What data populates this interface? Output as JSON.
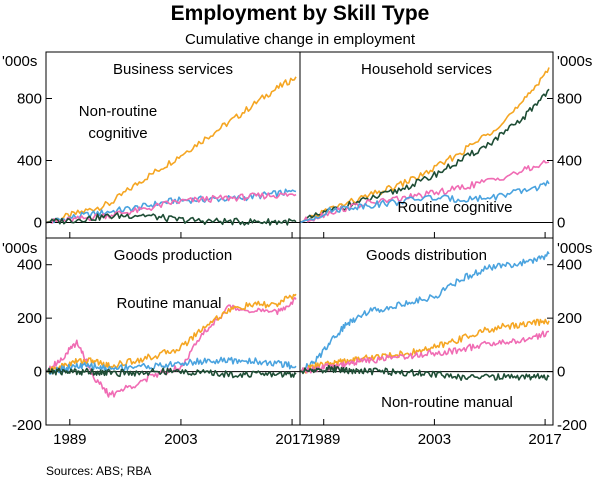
{
  "title": "Employment by Skill Type",
  "subtitle": "Cumulative change in employment",
  "source": "Sources: ABS; RBA",
  "colors": {
    "Non-routine cognitive": "#f5a623",
    "Routine cognitive": "#4aa3df",
    "Routine manual": "#f06cb4",
    "Non-routine manual": "#1e4d35"
  },
  "chart_data": [
    {
      "type": "line",
      "title": "Business services",
      "units_label": "'000s",
      "xlim": [
        1986,
        2018
      ],
      "ylim": [
        -100,
        1100
      ],
      "yticks": [
        0,
        400,
        800
      ],
      "xticks": [
        1989,
        2003,
        2017
      ],
      "x": [
        1986,
        1990,
        1994,
        1998,
        2002,
        2006,
        2010,
        2014,
        2017.5
      ],
      "series": [
        {
          "name": "Non-routine cognitive",
          "values": [
            0,
            60,
            120,
            270,
            400,
            540,
            680,
            830,
            940
          ]
        },
        {
          "name": "Routine cognitive",
          "values": [
            0,
            40,
            70,
            100,
            140,
            150,
            155,
            180,
            200
          ]
        },
        {
          "name": "Routine manual",
          "values": [
            0,
            20,
            50,
            80,
            130,
            150,
            160,
            175,
            180
          ]
        },
        {
          "name": "Non-routine manual",
          "values": [
            0,
            20,
            40,
            50,
            20,
            10,
            5,
            5,
            5
          ]
        }
      ],
      "annotations": [
        "Non-routine",
        "cognitive"
      ]
    },
    {
      "type": "line",
      "title": "Household services",
      "units_label": "'000s",
      "xlim": [
        1986,
        2018
      ],
      "ylim": [
        -100,
        1100
      ],
      "yticks": [
        0,
        400,
        800
      ],
      "xticks": [
        1989,
        2003,
        2017
      ],
      "x": [
        1986,
        1990,
        1994,
        1998,
        2002,
        2006,
        2010,
        2014,
        2017.5
      ],
      "series": [
        {
          "name": "Non-routine cognitive",
          "values": [
            0,
            90,
            160,
            230,
            320,
            440,
            580,
            760,
            1000
          ]
        },
        {
          "name": "Non-routine manual",
          "values": [
            0,
            80,
            140,
            200,
            280,
            390,
            510,
            660,
            860
          ]
        },
        {
          "name": "Routine manual",
          "values": [
            0,
            70,
            120,
            150,
            180,
            220,
            270,
            330,
            390
          ]
        },
        {
          "name": "Routine cognitive",
          "values": [
            0,
            80,
            110,
            130,
            160,
            150,
            160,
            200,
            250
          ]
        }
      ],
      "annotations": [
        "Routine cognitive"
      ]
    },
    {
      "type": "line",
      "title": "Goods production",
      "units_label": "'000s",
      "xlim": [
        1986,
        2018
      ],
      "ylim": [
        -200,
        500
      ],
      "yticks": [
        -200,
        0,
        200,
        400
      ],
      "xticks": [
        1989,
        2003,
        2017
      ],
      "x": [
        1986,
        1988,
        1990,
        1992,
        1994,
        1997,
        2000,
        2003,
        2006,
        2009,
        2012,
        2015,
        2017.5
      ],
      "series": [
        {
          "name": "Routine manual",
          "values": [
            0,
            50,
            110,
            -20,
            -90,
            -50,
            -10,
            20,
            150,
            240,
            230,
            220,
            270
          ]
        },
        {
          "name": "Non-routine cognitive",
          "values": [
            0,
            20,
            40,
            40,
            20,
            40,
            60,
            90,
            170,
            230,
            250,
            250,
            290
          ]
        },
        {
          "name": "Routine cognitive",
          "values": [
            0,
            10,
            20,
            20,
            10,
            20,
            20,
            30,
            40,
            40,
            40,
            30,
            20
          ]
        },
        {
          "name": "Non-routine manual",
          "values": [
            0,
            0,
            0,
            0,
            -5,
            -5,
            0,
            0,
            -5,
            -10,
            -10,
            -10,
            -10
          ]
        }
      ],
      "annotations": [
        "Routine manual"
      ]
    },
    {
      "type": "line",
      "title": "Goods distribution",
      "units_label": "'000s",
      "xlim": [
        1986,
        2018
      ],
      "ylim": [
        -200,
        500
      ],
      "yticks": [
        -200,
        0,
        200,
        400
      ],
      "xticks": [
        1989,
        2003,
        2017
      ],
      "x": [
        1986,
        1988,
        1990,
        1992,
        1994,
        1997,
        2000,
        2003,
        2006,
        2009,
        2012,
        2015,
        2017.5
      ],
      "series": [
        {
          "name": "Routine cognitive",
          "values": [
            0,
            40,
            120,
            180,
            220,
            240,
            260,
            280,
            340,
            380,
            400,
            410,
            440
          ]
        },
        {
          "name": "Non-routine cognitive",
          "values": [
            0,
            20,
            30,
            40,
            50,
            60,
            70,
            90,
            120,
            150,
            170,
            180,
            190
          ]
        },
        {
          "name": "Routine manual",
          "values": [
            0,
            10,
            20,
            30,
            40,
            50,
            60,
            70,
            80,
            100,
            110,
            120,
            150
          ]
        },
        {
          "name": "Non-routine manual",
          "values": [
            0,
            5,
            10,
            5,
            0,
            0,
            -5,
            -10,
            -20,
            -20,
            -20,
            -20,
            -20
          ]
        }
      ],
      "annotations": [
        "Non-routine manual"
      ]
    }
  ]
}
